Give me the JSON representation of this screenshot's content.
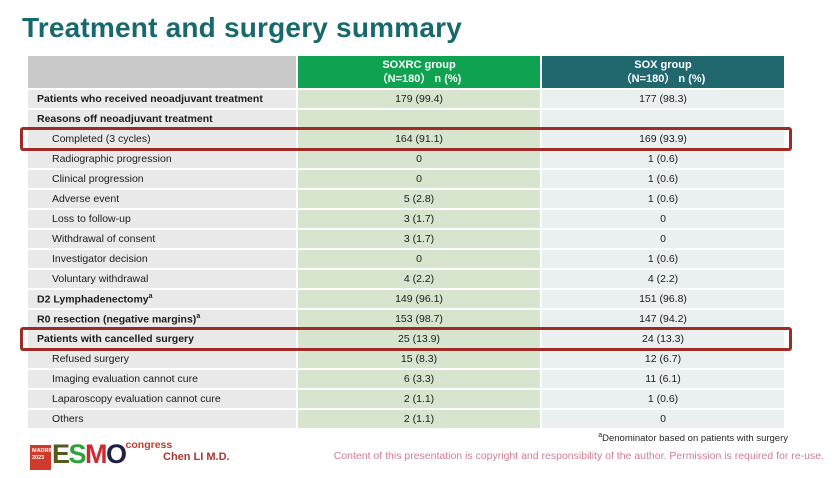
{
  "slide": {
    "title": "Treatment and surgery summary",
    "author": "Chen LI M.D.",
    "footnote_sup": "a",
    "footnote": "Denominator based on patients with surgery",
    "copyright": "Content of this presentation is copyright and responsibility of the author. Permission is required for re-use.",
    "logo": {
      "city": "MADRID",
      "year": "2023",
      "letters": [
        "E",
        "S",
        "M",
        "O"
      ],
      "suffix": "congress"
    }
  },
  "colors": {
    "title": "#17696e",
    "header_gray": "#c9c9c9",
    "header_green": "#0fa351",
    "header_teal": "#20676e",
    "cell_gray": "#e9e9e9",
    "cell_green": "#d7e5cf",
    "cell_teal": "#e9f0ef",
    "highlight_red": "#9e2b25"
  },
  "table": {
    "columns": [
      {
        "label": "",
        "sublabel": ""
      },
      {
        "label": "SOXRC group",
        "sublabel": "（N=180） n (%)"
      },
      {
        "label": "SOX group",
        "sublabel": "（N=180） n (%)"
      }
    ],
    "rows": [
      {
        "label": "Patients who received neoadjuvant treatment",
        "sup": "",
        "soxrc": "179 (99.4)",
        "sox": "177 (98.3)",
        "bold": true,
        "indent": false,
        "highlight": false
      },
      {
        "label": "Reasons off neoadjuvant treatment",
        "sup": "",
        "soxrc": "",
        "sox": "",
        "bold": true,
        "indent": false,
        "highlight": false
      },
      {
        "label": "Completed (3 cycles)",
        "sup": "",
        "soxrc": "164 (91.1)",
        "sox": "169 (93.9)",
        "bold": false,
        "indent": true,
        "highlight": true
      },
      {
        "label": "Radiographic progression",
        "sup": "",
        "soxrc": "0",
        "sox": "1 (0.6)",
        "bold": false,
        "indent": true,
        "highlight": false
      },
      {
        "label": "Clinical progression",
        "sup": "",
        "soxrc": "0",
        "sox": "1 (0.6)",
        "bold": false,
        "indent": true,
        "highlight": false
      },
      {
        "label": "Adverse event",
        "sup": "",
        "soxrc": "5 (2.8)",
        "sox": "1 (0.6)",
        "bold": false,
        "indent": true,
        "highlight": false
      },
      {
        "label": "Loss to follow-up",
        "sup": "",
        "soxrc": "3 (1.7)",
        "sox": "0",
        "bold": false,
        "indent": true,
        "highlight": false
      },
      {
        "label": "Withdrawal of consent",
        "sup": "",
        "soxrc": "3 (1.7)",
        "sox": "0",
        "bold": false,
        "indent": true,
        "highlight": false
      },
      {
        "label": "Investigator decision",
        "sup": "",
        "soxrc": "0",
        "sox": "1 (0.6)",
        "bold": false,
        "indent": true,
        "highlight": false
      },
      {
        "label": "Voluntary withdrawal",
        "sup": "",
        "soxrc": "4 (2.2)",
        "sox": "4 (2.2)",
        "bold": false,
        "indent": true,
        "highlight": false
      },
      {
        "label": "D2 Lymphadenectomy",
        "sup": "a",
        "soxrc": "149 (96.1)",
        "sox": "151 (96.8)",
        "bold": true,
        "indent": false,
        "highlight": false
      },
      {
        "label": "R0 resection (negative margins)",
        "sup": "a",
        "soxrc": "153 (98.7)",
        "sox": "147 (94.2)",
        "bold": true,
        "indent": false,
        "highlight": false
      },
      {
        "label": "Patients with cancelled surgery",
        "sup": "",
        "soxrc": "25 (13.9)",
        "sox": "24 (13.3)",
        "bold": true,
        "indent": false,
        "highlight": true
      },
      {
        "label": "Refused surgery",
        "sup": "",
        "soxrc": "15 (8.3)",
        "sox": "12 (6.7)",
        "bold": false,
        "indent": true,
        "highlight": false
      },
      {
        "label": "Imaging evaluation cannot cure",
        "sup": "",
        "soxrc": "6 (3.3)",
        "sox": "11 (6.1)",
        "bold": false,
        "indent": true,
        "highlight": false
      },
      {
        "label": "Laparoscopy evaluation cannot cure",
        "sup": "",
        "soxrc": "2 (1.1)",
        "sox": "1 (0.6)",
        "bold": false,
        "indent": true,
        "highlight": false
      },
      {
        "label": "Others",
        "sup": "",
        "soxrc": "2 (1.1)",
        "sox": "0",
        "bold": false,
        "indent": true,
        "highlight": false
      }
    ]
  }
}
